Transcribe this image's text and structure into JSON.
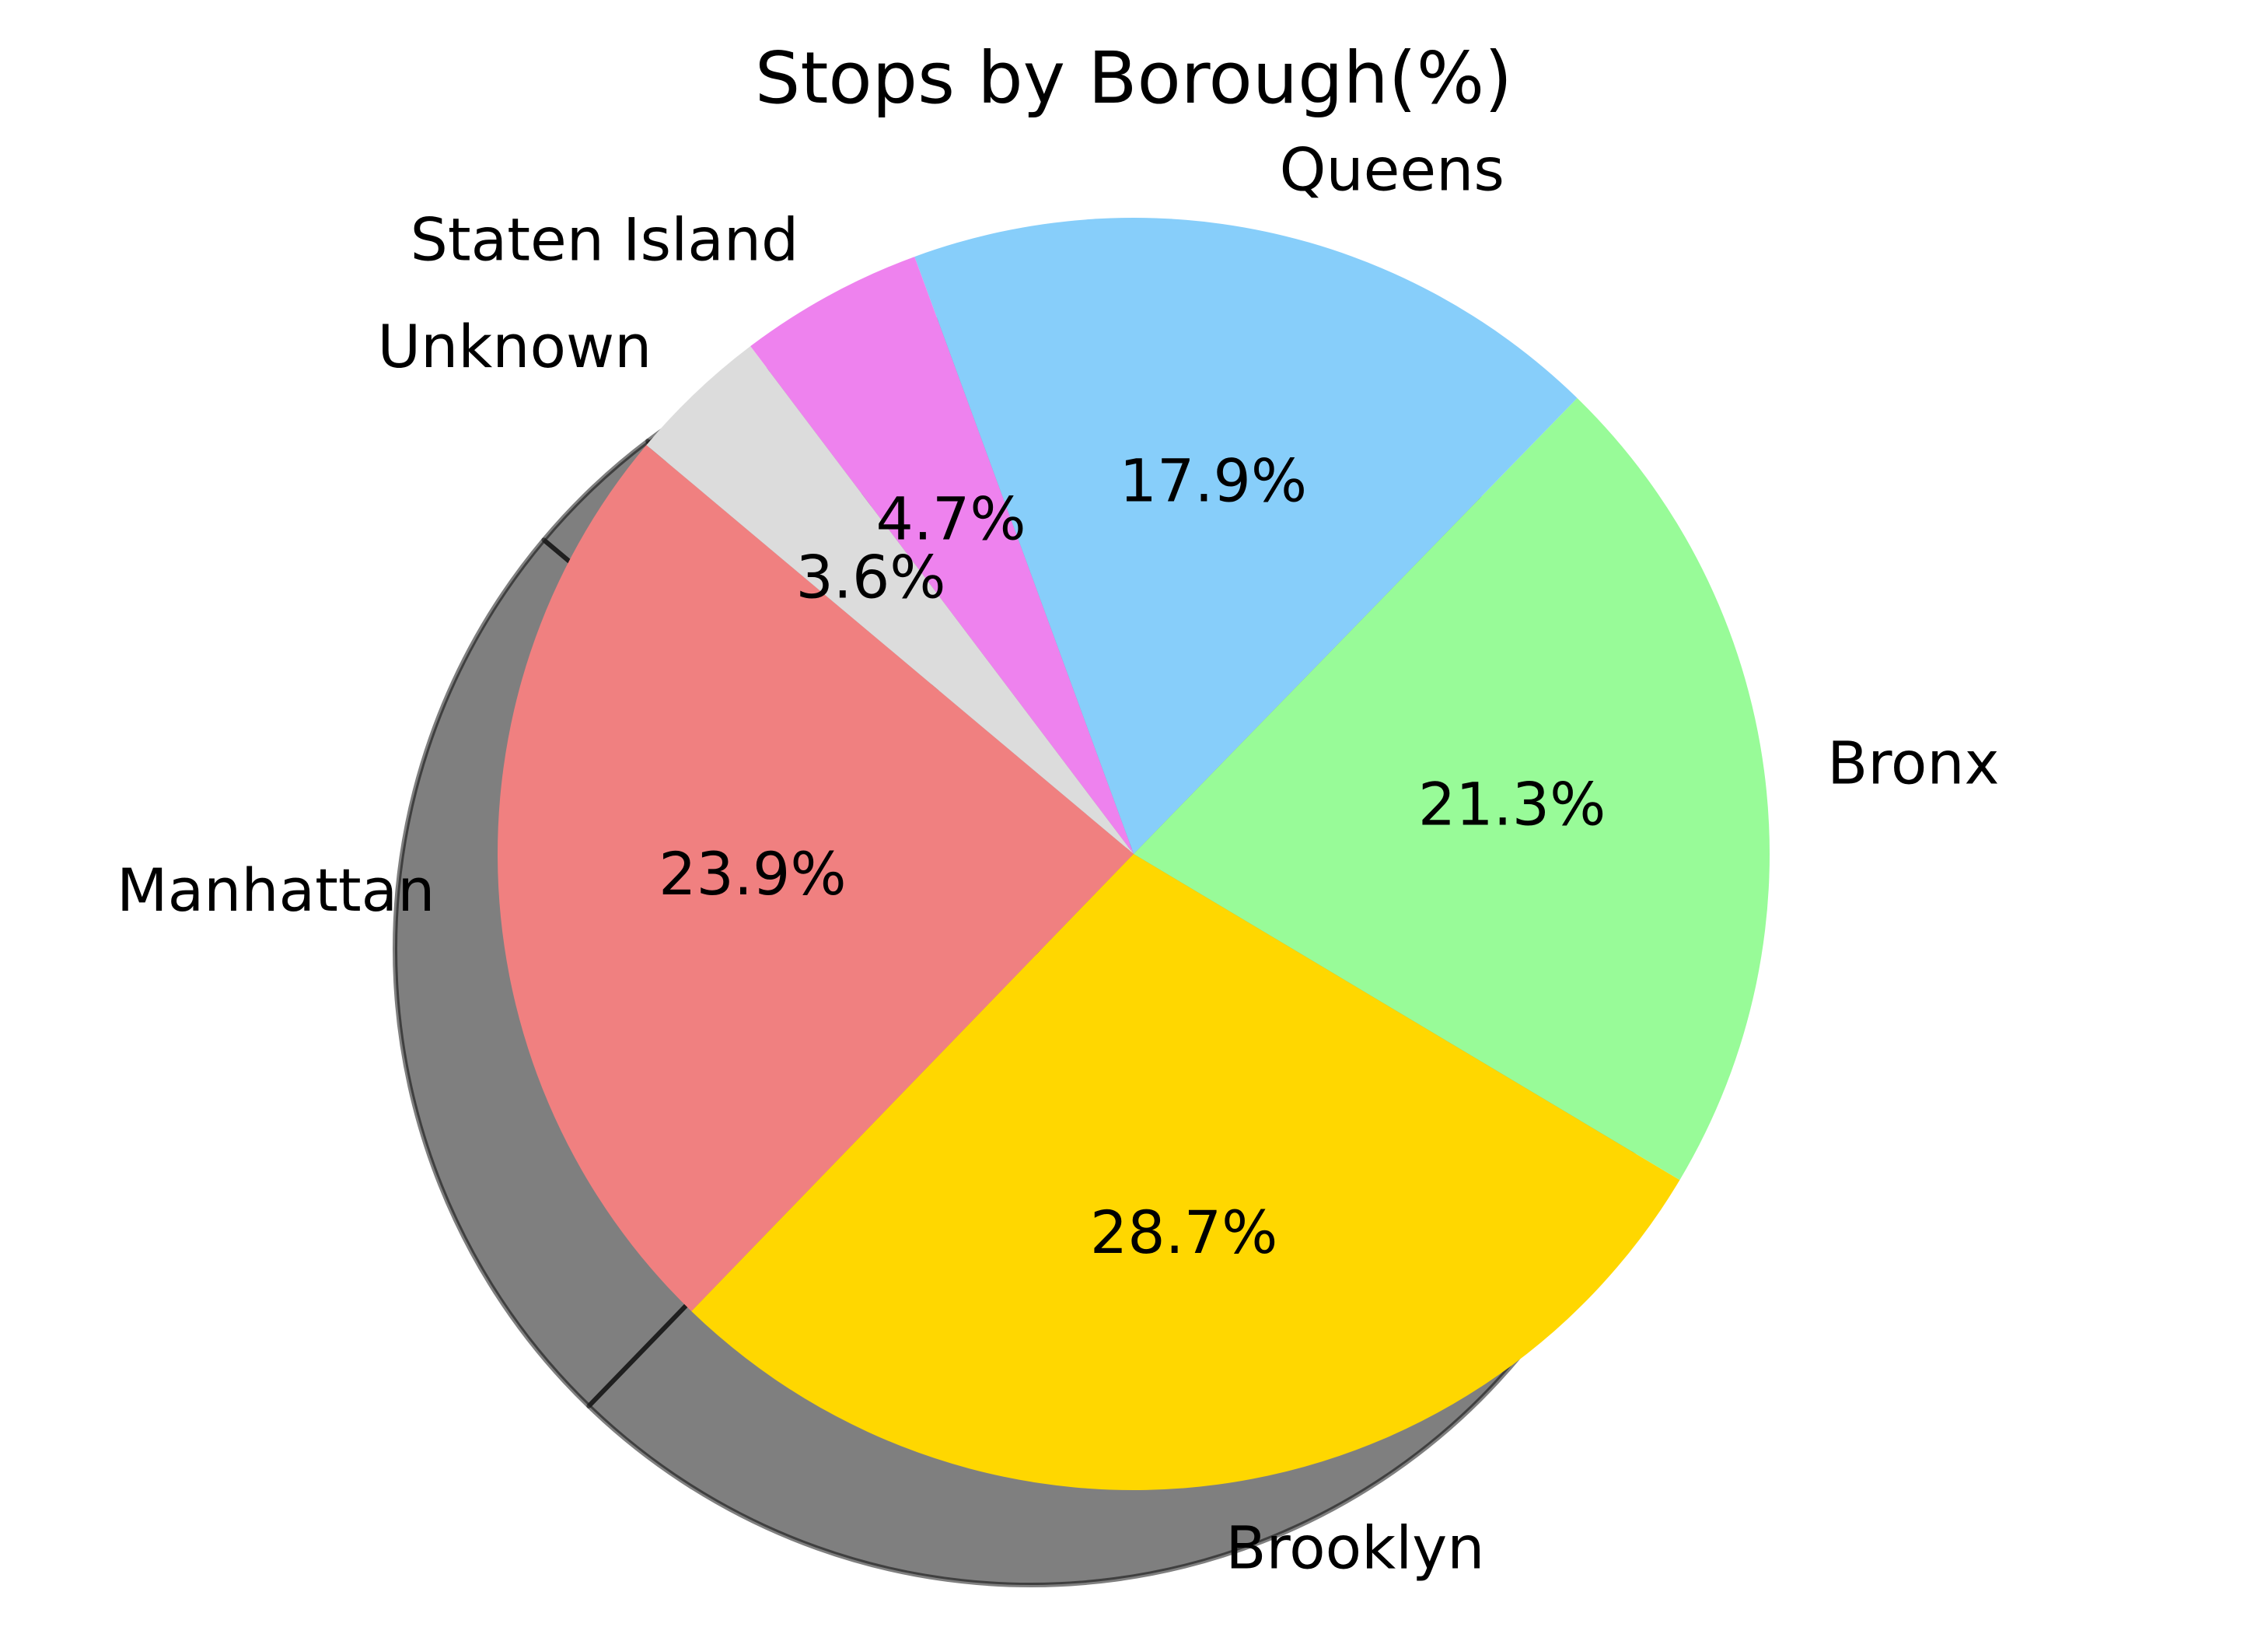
{
  "chart_data": {
    "type": "pie",
    "title": "Stops by Borough(%)",
    "categories": [
      "Manhattan",
      "Brooklyn",
      "Bronx",
      "Queens",
      "Staten Island",
      "Unknown"
    ],
    "values": [
      23.9,
      28.7,
      21.3,
      17.9,
      4.7,
      3.6
    ],
    "value_labels": [
      "23.9%",
      "28.7%",
      "21.3%",
      "17.9%",
      "4.7%",
      "3.6%"
    ],
    "colors": [
      "#f08080",
      "#ffd700",
      "#98fb98",
      "#87cefa",
      "#ee82ee",
      "#dcdcdc"
    ],
    "start_angle_deg": 140,
    "direction": "counterclockwise",
    "shadow": true,
    "legend": "none"
  }
}
